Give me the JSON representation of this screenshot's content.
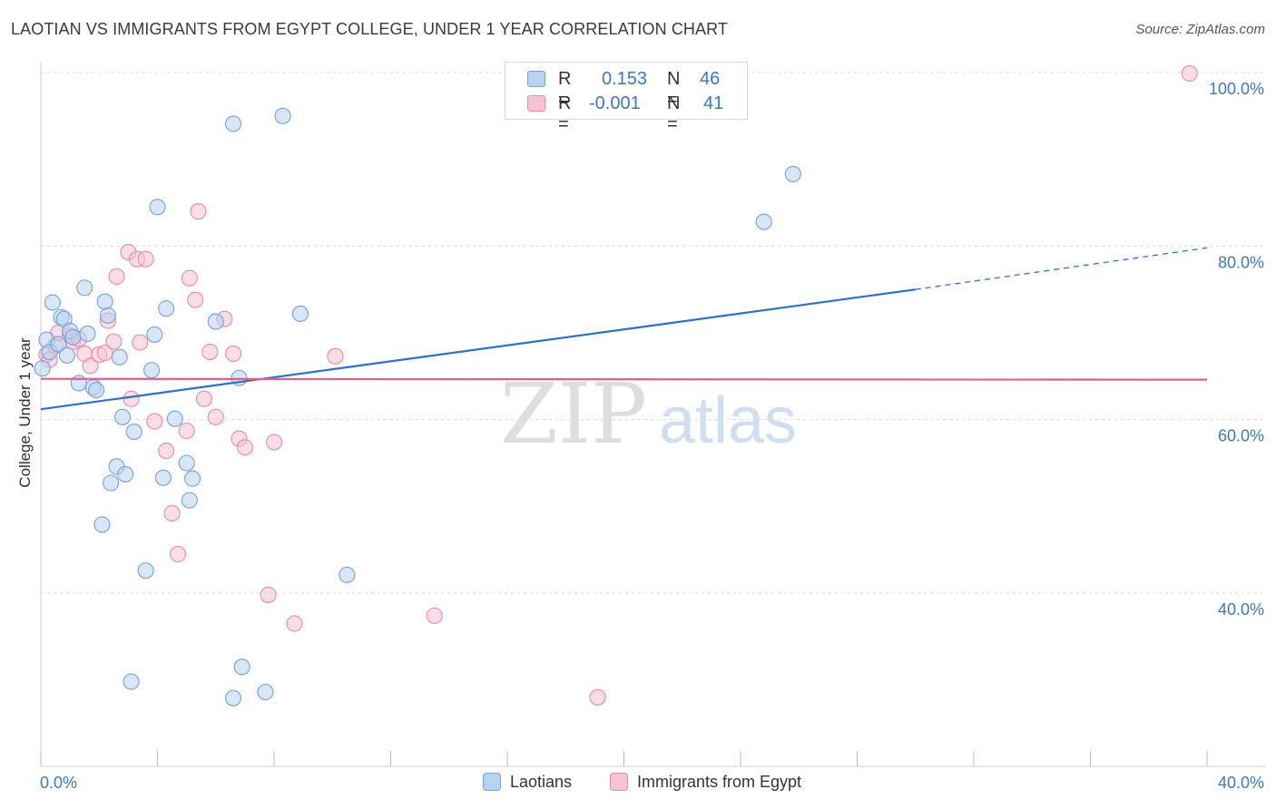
{
  "title": "LAOTIAN VS IMMIGRANTS FROM EGYPT COLLEGE, UNDER 1 YEAR CORRELATION CHART",
  "source": "Source: ZipAtlas.com",
  "watermark": {
    "zip": "ZIP",
    "atlas": "atlas"
  },
  "legend": {
    "rows": [
      {
        "r_label": "R =",
        "r_value": "0.153",
        "n_label": "N =",
        "n_value": "46"
      },
      {
        "r_label": "R =",
        "r_value": "-0.001",
        "n_label": "N =",
        "n_value": "41"
      }
    ]
  },
  "colors": {
    "laotians": "#6fa3dd",
    "laotians_fill": "#b8d2f2",
    "laotians_line": "#2f6fcc",
    "egypt": "#e98aa7",
    "egypt_fill": "#f6c3d3",
    "egypt_line": "#e0608a",
    "axis_text": "#3b78c4"
  },
  "chart_data": {
    "type": "scatter",
    "title": "LAOTIAN VS IMMIGRANTS FROM EGYPT COLLEGE, UNDER 1 YEAR CORRELATION CHART",
    "xlabel": "",
    "ylabel": "College, Under 1 year",
    "xlim": [
      0,
      40
    ],
    "ylim": [
      22,
      102
    ],
    "x_ticks": [
      "0.0%",
      "40.0%"
    ],
    "y_ticks": [
      {
        "value": 40,
        "label": "40.0%"
      },
      {
        "value": 60,
        "label": "60.0%"
      },
      {
        "value": 80,
        "label": "80.0%"
      },
      {
        "value": 100,
        "label": "100.0%"
      }
    ],
    "grid": true,
    "legend_position": "bottom-center",
    "series": [
      {
        "name": "Laotians",
        "color": "#6fa3dd",
        "points": [
          [
            0.05,
            65.9
          ],
          [
            0.2,
            69.2
          ],
          [
            0.3,
            67.8
          ],
          [
            0.4,
            73.5
          ],
          [
            0.6,
            68.7
          ],
          [
            0.7,
            71.8
          ],
          [
            0.8,
            71.6
          ],
          [
            0.9,
            67.4
          ],
          [
            1.0,
            70.2
          ],
          [
            1.1,
            69.5
          ],
          [
            1.3,
            64.2
          ],
          [
            1.5,
            75.2
          ],
          [
            1.6,
            69.9
          ],
          [
            1.8,
            63.7
          ],
          [
            1.9,
            63.4
          ],
          [
            2.1,
            47.9
          ],
          [
            2.2,
            73.6
          ],
          [
            2.3,
            72.0
          ],
          [
            2.4,
            52.7
          ],
          [
            2.6,
            54.6
          ],
          [
            2.7,
            67.2
          ],
          [
            2.8,
            60.3
          ],
          [
            2.9,
            53.7
          ],
          [
            3.1,
            29.8
          ],
          [
            3.2,
            58.6
          ],
          [
            3.6,
            42.6
          ],
          [
            3.8,
            65.7
          ],
          [
            3.9,
            69.8
          ],
          [
            4.0,
            84.5
          ],
          [
            4.2,
            53.3
          ],
          [
            4.3,
            72.8
          ],
          [
            4.6,
            60.1
          ],
          [
            5.0,
            55.0
          ],
          [
            5.1,
            50.7
          ],
          [
            5.2,
            53.2
          ],
          [
            6.0,
            71.3
          ],
          [
            6.6,
            27.9
          ],
          [
            6.6,
            94.1
          ],
          [
            6.8,
            64.8
          ],
          [
            6.9,
            31.5
          ],
          [
            7.7,
            28.6
          ],
          [
            8.3,
            95.0
          ],
          [
            8.9,
            72.2
          ],
          [
            10.5,
            42.1
          ],
          [
            24.8,
            82.8
          ],
          [
            25.8,
            88.3
          ]
        ]
      },
      {
        "name": "Immigrants from Egypt",
        "color": "#e98aa7",
        "points": [
          [
            0.2,
            67.5
          ],
          [
            0.3,
            66.9
          ],
          [
            0.5,
            68.5
          ],
          [
            0.6,
            70.0
          ],
          [
            1.0,
            69.7
          ],
          [
            1.1,
            69.0
          ],
          [
            1.3,
            69.3
          ],
          [
            1.5,
            67.6
          ],
          [
            1.7,
            66.2
          ],
          [
            2.0,
            67.5
          ],
          [
            2.2,
            67.7
          ],
          [
            2.3,
            71.4
          ],
          [
            2.5,
            69.0
          ],
          [
            2.6,
            76.5
          ],
          [
            3.0,
            79.3
          ],
          [
            3.1,
            62.4
          ],
          [
            3.3,
            78.5
          ],
          [
            3.4,
            68.9
          ],
          [
            3.6,
            78.5
          ],
          [
            3.9,
            59.8
          ],
          [
            4.3,
            56.4
          ],
          [
            4.5,
            49.2
          ],
          [
            4.7,
            44.5
          ],
          [
            5.0,
            58.7
          ],
          [
            5.1,
            76.3
          ],
          [
            5.3,
            73.8
          ],
          [
            5.4,
            84.0
          ],
          [
            5.6,
            62.4
          ],
          [
            5.8,
            67.8
          ],
          [
            6.0,
            60.3
          ],
          [
            6.3,
            71.6
          ],
          [
            6.6,
            67.6
          ],
          [
            6.8,
            57.8
          ],
          [
            7.0,
            56.8
          ],
          [
            7.8,
            39.8
          ],
          [
            8.0,
            57.4
          ],
          [
            8.7,
            36.5
          ],
          [
            10.1,
            67.3
          ],
          [
            13.5,
            37.4
          ],
          [
            19.1,
            28.0
          ],
          [
            39.4,
            99.9
          ]
        ]
      }
    ],
    "trend_lines": [
      {
        "series": "Laotians",
        "x": [
          0,
          30
        ],
        "y": [
          61.2,
          75.0
        ],
        "extended_to": [
          40,
          79.8
        ]
      },
      {
        "series": "Immigrants from Egypt",
        "x": [
          0,
          40
        ],
        "y": [
          64.7,
          64.6
        ]
      }
    ]
  }
}
